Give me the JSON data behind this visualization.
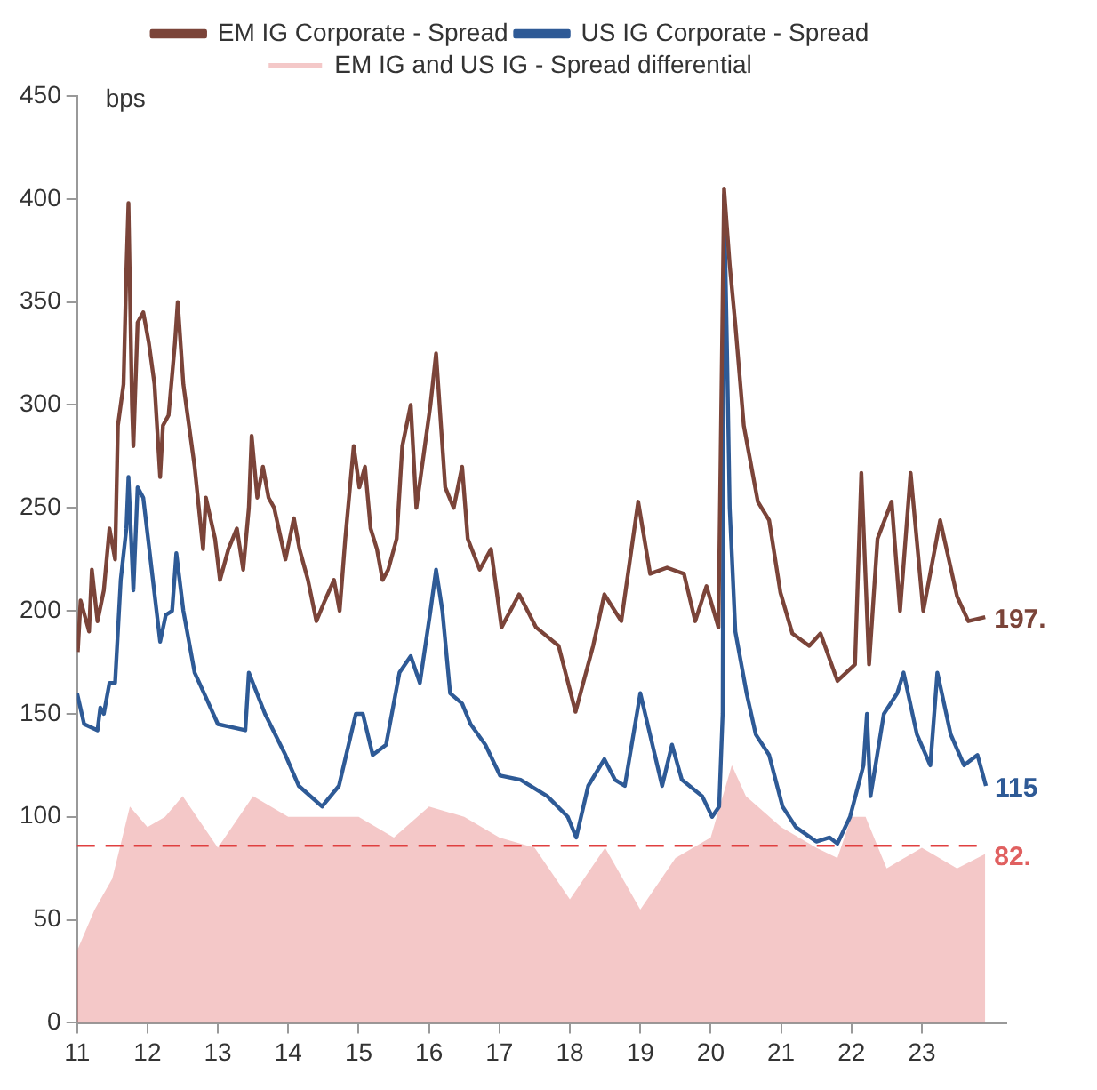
{
  "chart_data": {
    "type": "line",
    "ylabel": "bps",
    "xlim": [
      2011,
      2024.2
    ],
    "ylim": [
      0,
      450
    ],
    "xticks": [
      {
        "value": 2011,
        "label": "11"
      },
      {
        "value": 2012,
        "label": "12"
      },
      {
        "value": 2013,
        "label": "13"
      },
      {
        "value": 2014,
        "label": "14"
      },
      {
        "value": 2015,
        "label": "15"
      },
      {
        "value": 2016,
        "label": "16"
      },
      {
        "value": 2017,
        "label": "17"
      },
      {
        "value": 2018,
        "label": "18"
      },
      {
        "value": 2019,
        "label": "19"
      },
      {
        "value": 2020,
        "label": "20"
      },
      {
        "value": 2021,
        "label": "21"
      },
      {
        "value": 2022,
        "label": "22"
      },
      {
        "value": 2023,
        "label": "23"
      }
    ],
    "yticks": [
      0,
      50,
      100,
      150,
      200,
      250,
      300,
      350,
      400,
      450
    ],
    "grid": false,
    "legend": "top",
    "marker": "none",
    "line_style": "solid",
    "series": [
      {
        "name": "EM IG Corporate - Spread",
        "color": "#7b4439",
        "x": [
          2011.01,
          2011.05,
          2011.17,
          2011.21,
          2011.29,
          2011.38,
          2011.46,
          2011.54,
          2011.58,
          2011.66,
          2011.7,
          2011.73,
          2011.78,
          2011.8,
          2011.86,
          2011.94,
          2012.02,
          2012.1,
          2012.18,
          2012.22,
          2012.3,
          2012.39,
          2012.43,
          2012.51,
          2012.59,
          2012.67,
          2012.79,
          2012.83,
          2012.96,
          2013.03,
          2013.15,
          2013.27,
          2013.36,
          2013.44,
          2013.48,
          2013.56,
          2013.64,
          2013.72,
          2013.8,
          2013.96,
          2014.08,
          2014.16,
          2014.28,
          2014.4,
          2014.52,
          2014.65,
          2014.73,
          2014.81,
          2014.93,
          2015.01,
          2015.09,
          2015.17,
          2015.26,
          2015.34,
          2015.42,
          2015.54,
          2015.62,
          2015.74,
          2015.82,
          2015.9,
          2016.02,
          2016.1,
          2016.19,
          2016.23,
          2016.35,
          2016.47,
          2016.55,
          2016.72,
          2016.88,
          2017.03,
          2017.28,
          2017.52,
          2017.84,
          2018.08,
          2018.33,
          2018.49,
          2018.73,
          2018.97,
          2019.14,
          2019.38,
          2019.62,
          2019.78,
          2019.94,
          2020.11,
          2020.19,
          2020.27,
          2020.35,
          2020.47,
          2020.67,
          2020.83,
          2020.99,
          2021.16,
          2021.4,
          2021.56,
          2021.8,
          2022.05,
          2022.14,
          2022.25,
          2022.37,
          2022.57,
          2022.69,
          2022.84,
          2023.02,
          2023.26,
          2023.5,
          2023.66,
          2023.9
        ],
        "values": [
          180,
          205,
          190,
          220,
          195,
          210,
          240,
          225,
          290,
          310,
          365,
          398,
          300,
          280,
          340,
          345,
          330,
          310,
          265,
          290,
          295,
          330,
          350,
          310,
          290,
          270,
          230,
          255,
          235,
          215,
          230,
          240,
          220,
          250,
          285,
          255,
          270,
          255,
          250,
          225,
          245,
          230,
          215,
          195,
          205,
          215,
          200,
          235,
          280,
          260,
          270,
          240,
          230,
          215,
          220,
          235,
          280,
          300,
          250,
          270,
          300,
          325,
          280,
          260,
          250,
          270,
          235,
          220,
          230,
          192,
          208,
          192,
          183,
          151,
          183,
          208,
          195,
          253,
          218,
          221,
          218,
          195,
          212,
          192,
          405,
          368,
          339,
          290,
          253,
          244,
          209,
          189,
          183,
          189,
          166,
          174,
          267,
          174,
          235,
          253,
          200,
          267,
          200,
          244,
          207,
          195,
          197
        ],
        "value_labels": [
          null,
          null,
          null,
          null,
          null,
          null,
          null,
          null,
          null,
          null,
          null,
          null,
          null,
          null,
          null,
          null,
          null,
          null,
          null,
          null,
          null,
          null,
          null,
          null,
          null,
          null,
          null,
          null,
          null,
          null,
          null,
          null,
          null,
          null,
          null,
          null,
          null,
          null,
          null,
          null,
          null,
          null,
          null,
          null,
          null,
          null,
          null,
          null,
          null,
          null,
          null,
          null,
          null,
          null,
          null,
          null,
          null,
          null,
          null,
          null,
          null,
          null,
          null,
          null,
          null,
          null,
          null,
          null,
          null,
          null,
          null,
          null,
          null,
          null,
          null,
          null,
          null,
          null,
          null,
          null,
          null,
          null,
          null,
          null,
          null,
          null,
          null,
          null,
          null,
          null,
          null,
          null,
          null,
          null,
          null,
          null,
          null,
          null,
          null,
          null,
          null,
          null,
          null,
          null,
          null,
          null,
          "197."
        ]
      },
      {
        "name": "US IG Corporate - Spread",
        "color": "#2e5a96",
        "x": [
          2011.0,
          2011.1,
          2011.29,
          2011.33,
          2011.38,
          2011.46,
          2011.54,
          2011.62,
          2011.7,
          2011.73,
          2011.8,
          2011.86,
          2011.94,
          2012.06,
          2012.18,
          2012.26,
          2012.35,
          2012.41,
          2012.51,
          2012.67,
          2012.83,
          2013.0,
          2013.39,
          2013.44,
          2013.67,
          2013.96,
          2014.15,
          2014.48,
          2014.72,
          2014.96,
          2015.06,
          2015.2,
          2015.39,
          2015.58,
          2015.74,
          2015.87,
          2016.02,
          2016.1,
          2016.19,
          2016.3,
          2016.47,
          2016.59,
          2016.8,
          2017.01,
          2017.3,
          2017.68,
          2017.97,
          2018.09,
          2018.26,
          2018.49,
          2018.64,
          2018.78,
          2019.0,
          2019.31,
          2019.45,
          2019.59,
          2019.88,
          2020.02,
          2020.12,
          2020.17,
          2020.19,
          2020.23,
          2020.27,
          2020.35,
          2020.51,
          2020.64,
          2020.83,
          2021.02,
          2021.21,
          2021.5,
          2021.69,
          2021.8,
          2021.98,
          2022.17,
          2022.22,
          2022.27,
          2022.46,
          2022.65,
          2022.74,
          2022.93,
          2023.12,
          2023.22,
          2023.41,
          2023.6,
          2023.79,
          2023.91
        ],
        "values": [
          160,
          145,
          142,
          153,
          150,
          165,
          165,
          215,
          240,
          265,
          210,
          260,
          255,
          220,
          185,
          198,
          200,
          228,
          200,
          170,
          158,
          145,
          142,
          170,
          150,
          130,
          115,
          105,
          115,
          150,
          150,
          130,
          135,
          170,
          178,
          165,
          200,
          220,
          200,
          160,
          155,
          145,
          135,
          120,
          118,
          110,
          100,
          90,
          115,
          128,
          118,
          115,
          160,
          115,
          135,
          118,
          110,
          100,
          105,
          150,
          402,
          330,
          250,
          190,
          160,
          140,
          130,
          105,
          95,
          88,
          90,
          87,
          100,
          125,
          150,
          110,
          150,
          160,
          170,
          140,
          125,
          170,
          140,
          125,
          130,
          115
        ],
        "value_labels": [
          null,
          null,
          null,
          null,
          null,
          null,
          null,
          null,
          null,
          null,
          null,
          null,
          null,
          null,
          null,
          null,
          null,
          null,
          null,
          null,
          null,
          null,
          null,
          null,
          null,
          null,
          null,
          null,
          null,
          null,
          null,
          null,
          null,
          null,
          null,
          null,
          null,
          null,
          null,
          null,
          null,
          null,
          null,
          null,
          null,
          null,
          null,
          null,
          null,
          null,
          null,
          null,
          null,
          null,
          null,
          null,
          null,
          null,
          null,
          null,
          null,
          null,
          null,
          null,
          null,
          null,
          null,
          null,
          null,
          null,
          null,
          null,
          null,
          null,
          null,
          null,
          null,
          null,
          null,
          null,
          null,
          null,
          null,
          null,
          null,
          "115"
        ]
      },
      {
        "name": "EM IG and US IG - Spread differential",
        "type": "area",
        "color": "#e06060",
        "x": [
          2011.0,
          2011.25,
          2011.5,
          2011.75,
          2012.0,
          2012.25,
          2012.5,
          2013.0,
          2013.5,
          2014.0,
          2014.5,
          2015.0,
          2015.5,
          2016.0,
          2016.5,
          2017.0,
          2017.5,
          2018.0,
          2018.5,
          2019.0,
          2019.5,
          2020.0,
          2020.3,
          2020.5,
          2021.0,
          2021.5,
          2021.8,
          2022.0,
          2022.2,
          2022.5,
          2023.0,
          2023.5,
          2023.9
        ],
        "values": [
          35,
          55,
          70,
          105,
          95,
          100,
          110,
          85,
          110,
          100,
          100,
          100,
          90,
          105,
          100,
          90,
          85,
          60,
          85,
          55,
          80,
          90,
          125,
          110,
          95,
          85,
          80,
          100,
          100,
          75,
          85,
          75,
          82
        ],
        "value_labels": [
          null,
          null,
          null,
          null,
          null,
          null,
          null,
          null,
          null,
          null,
          null,
          null,
          null,
          null,
          null,
          null,
          null,
          null,
          null,
          null,
          null,
          null,
          null,
          null,
          null,
          null,
          null,
          null,
          null,
          null,
          null,
          null,
          "82."
        ]
      }
    ],
    "ref_lines": [
      {
        "axis": "y",
        "value": 86,
        "color": "#e04040",
        "line_style": "dashed"
      }
    ]
  }
}
